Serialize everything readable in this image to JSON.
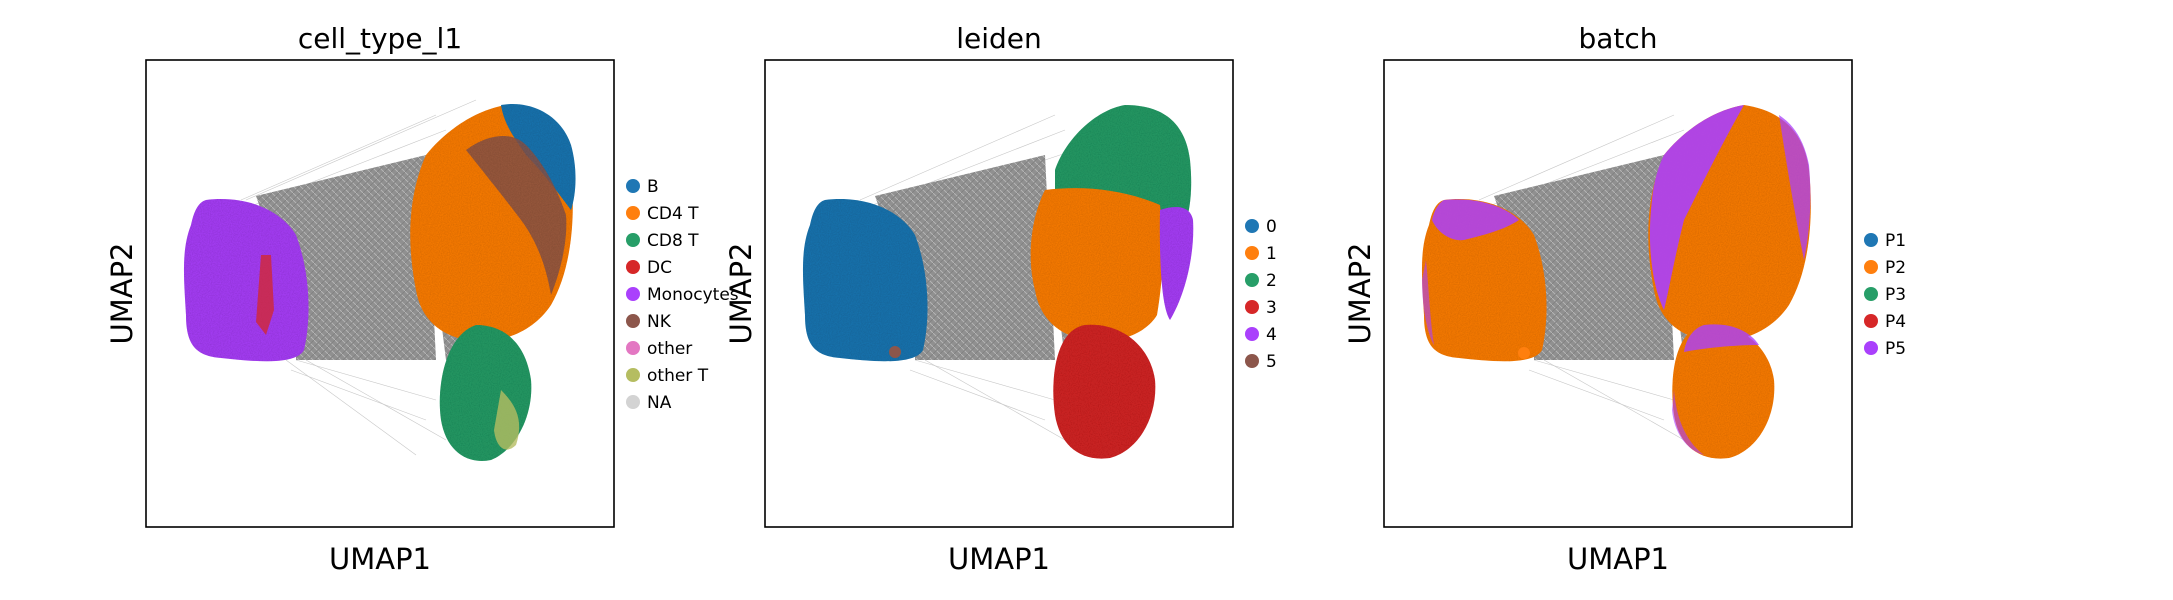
{
  "chart_data": [
    {
      "type": "scatter",
      "title": "cell_type_l1",
      "xlabel": "UMAP1",
      "ylabel": "UMAP2",
      "ticks": false,
      "grid": false,
      "legend": {
        "placement": "right",
        "entries": [
          {
            "label": "B",
            "color": "#1f77b4"
          },
          {
            "label": "CD4 T",
            "color": "#ff7f0e"
          },
          {
            "label": "CD8 T",
            "color": "#279e68"
          },
          {
            "label": "DC",
            "color": "#d62728"
          },
          {
            "label": "Monocytes",
            "color": "#aa40fc"
          },
          {
            "label": "NK",
            "color": "#8c564b"
          },
          {
            "label": "other",
            "color": "#e377c2"
          },
          {
            "label": "other T",
            "color": "#b5bd61"
          },
          {
            "label": "NA",
            "color": "#d3d3d3"
          }
        ]
      }
    },
    {
      "type": "scatter",
      "title": "leiden",
      "xlabel": "UMAP1",
      "ylabel": "UMAP2",
      "ticks": false,
      "grid": false,
      "legend": {
        "placement": "right",
        "entries": [
          {
            "label": "0",
            "color": "#1f77b4"
          },
          {
            "label": "1",
            "color": "#ff7f0e"
          },
          {
            "label": "2",
            "color": "#279e68"
          },
          {
            "label": "3",
            "color": "#d62728"
          },
          {
            "label": "4",
            "color": "#aa40fc"
          },
          {
            "label": "5",
            "color": "#8c564b"
          }
        ]
      }
    },
    {
      "type": "scatter",
      "title": "batch",
      "xlabel": "UMAP1",
      "ylabel": "UMAP2",
      "ticks": false,
      "grid": false,
      "legend": {
        "placement": "right",
        "entries": [
          {
            "label": "P1",
            "color": "#1f77b4"
          },
          {
            "label": "P2",
            "color": "#ff7f0e"
          },
          {
            "label": "P3",
            "color": "#279e68"
          },
          {
            "label": "P4",
            "color": "#d62728"
          },
          {
            "label": "P5",
            "color": "#aa40fc"
          }
        ]
      }
    }
  ]
}
